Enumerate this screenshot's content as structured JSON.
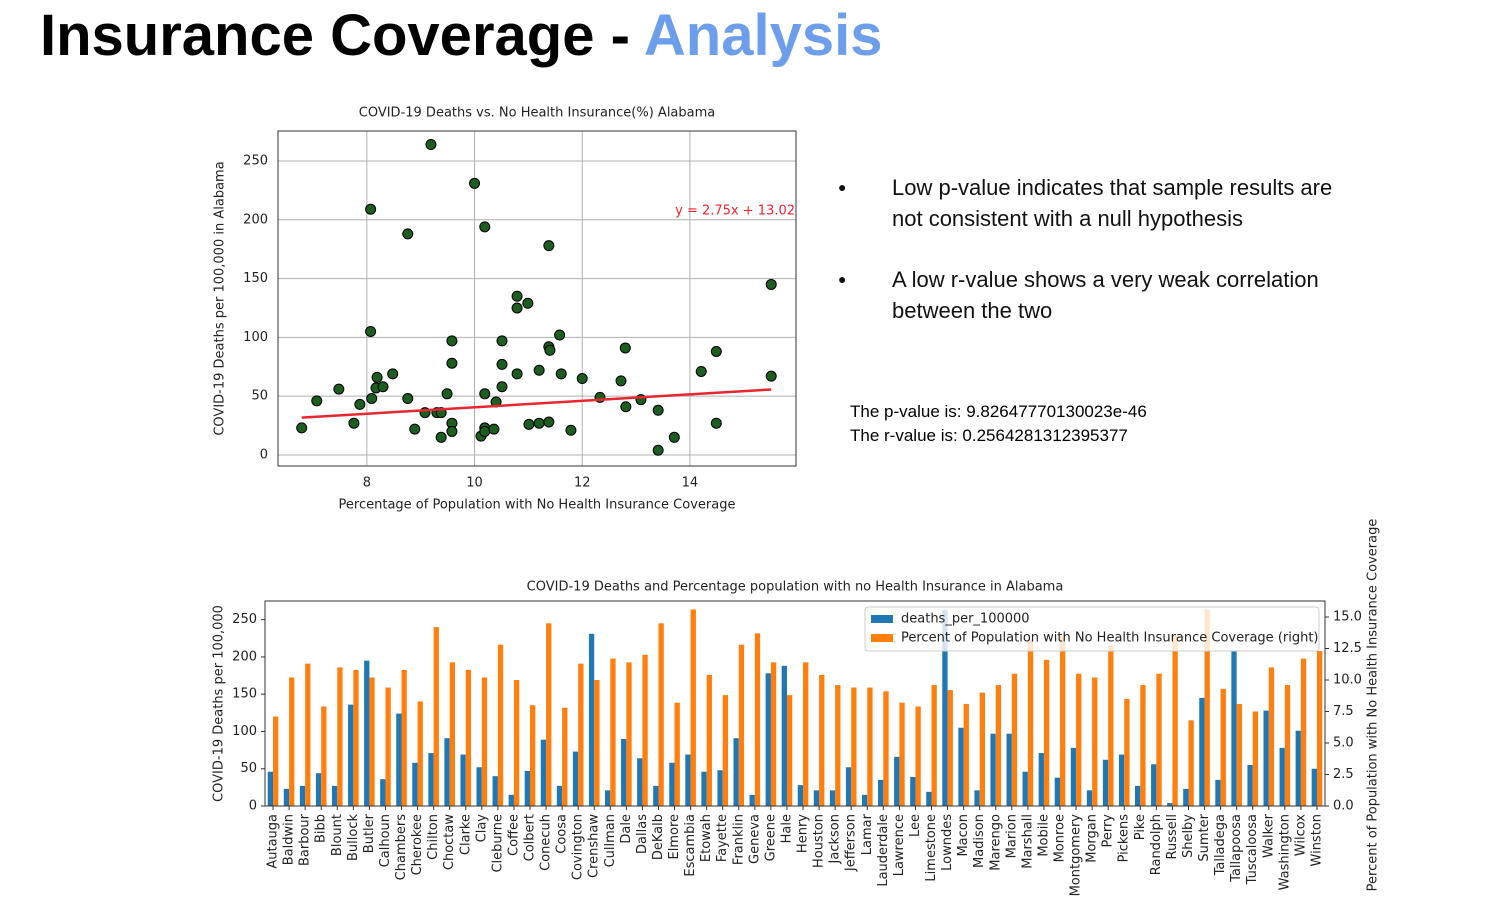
{
  "slide": {
    "title": "Insurance Coverage -",
    "title_highlight": "Analysis",
    "bullets": [
      "Low p-value indicates that sample results are not consistent with a null hypothesis",
      "A low r-value shows a very weak correlation between the two"
    ],
    "stats": [
      "The p-value is: 9.82647770130023e-46",
      "The r-value is: 0.2564281312395377"
    ]
  },
  "chart_data": [
    {
      "type": "scatter",
      "title": "COVID-19 Deaths vs. No Health Insurance(%) Alabama",
      "xlabel": "Percentage of Population with No Health Insurance Coverage",
      "ylabel": "COVID-19 Deaths per 100,000 in Alabama",
      "x": [
        6.79,
        7.07,
        7.48,
        7.76,
        7.87,
        8.07,
        8.07,
        8.09,
        8.19,
        8.17,
        8.3,
        8.48,
        8.76,
        8.76,
        8.89,
        9.08,
        9.19,
        9.3,
        9.38,
        9.38,
        9.49,
        9.58,
        9.58,
        9.58,
        9.58,
        10.0,
        10.12,
        10.19,
        10.19,
        10.19,
        10.19,
        10.36,
        10.4,
        10.51,
        10.51,
        10.51,
        10.79,
        10.79,
        10.79,
        10.99,
        11.01,
        11.2,
        11.2,
        11.38,
        11.38,
        11.38,
        11.4,
        11.58,
        11.61,
        11.79,
        12.0,
        12.33,
        12.72,
        12.8,
        12.81,
        13.09,
        13.41,
        13.41,
        13.71,
        14.21,
        14.49,
        14.49,
        15.51,
        15.51
      ],
      "y": [
        23,
        46,
        56,
        27,
        43,
        209,
        105,
        48,
        66,
        57,
        58,
        69,
        188,
        48,
        22,
        36,
        264,
        36,
        15,
        36,
        52,
        97,
        78,
        27,
        20,
        231,
        16,
        194,
        52,
        23,
        20,
        22,
        45,
        97,
        77,
        58,
        135,
        125,
        69,
        129,
        26,
        72,
        27,
        28,
        178,
        92,
        89,
        102,
        69,
        21,
        65,
        49,
        63,
        91,
        41,
        47,
        38,
        4,
        15,
        71,
        88,
        27,
        145,
        67
      ],
      "color": "#1b5e20",
      "xlim": [
        6.35,
        15.97
      ],
      "ylim": [
        -9.4,
        275.5
      ],
      "xticks": [
        8,
        10,
        12,
        14
      ],
      "yticks": [
        0,
        50,
        100,
        150,
        200,
        250
      ],
      "grid": true,
      "annotation": "y = 2.75x + 13.02",
      "annotation_color": "#e8262f",
      "trendline": {
        "slope": 2.75,
        "intercept": 13.02,
        "color": "#e8262f"
      }
    },
    {
      "type": "bar",
      "title": "COVID-19 Deaths and Percentage population with no Health Insurance in Alabama",
      "ylabel": "COVID-19 Deaths per 100,000",
      "y2label": "Percent of Population with No Health Insurance Coverage",
      "categories": [
        "Autauga",
        "Baldwin",
        "Barbour",
        "Bibb",
        "Blount",
        "Bullock",
        "Butler",
        "Calhoun",
        "Chambers",
        "Cherokee",
        "Chilton",
        "Choctaw",
        "Clarke",
        "Clay",
        "Cleburne",
        "Coffee",
        "Colbert",
        "Conecuh",
        "Coosa",
        "Covington",
        "Crenshaw",
        "Cullman",
        "Dale",
        "Dallas",
        "DeKalb",
        "Elmore",
        "Escambia",
        "Etowah",
        "Fayette",
        "Franklin",
        "Geneva",
        "Greene",
        "Hale",
        "Henry",
        "Houston",
        "Jackson",
        "Jefferson",
        "Lamar",
        "Lauderdale",
        "Lawrence",
        "Lee",
        "Limestone",
        "Lowndes",
        "Macon",
        "Madison",
        "Marengo",
        "Marion",
        "Marshall",
        "Mobile",
        "Monroe",
        "Montgomery",
        "Morgan",
        "Perry",
        "Pickens",
        "Pike",
        "Randolph",
        "Russell",
        "Shelby",
        "Sumter",
        "Talladega",
        "Tallapoosa",
        "Tuscaloosa",
        "Walker",
        "Washington",
        "Wilcox",
        "Winston"
      ],
      "series": [
        {
          "name": "deaths_per_100000",
          "color": "#1f77b4",
          "values": [
            46,
            23,
            27,
            44,
            27,
            136,
            195,
            36,
            124,
            58,
            71,
            91,
            69,
            52,
            40,
            15,
            47,
            89,
            27,
            73,
            231,
            21,
            90,
            64,
            27,
            58,
            69,
            46,
            48,
            91,
            15,
            178,
            188,
            28,
            21,
            21,
            52,
            15,
            35,
            66,
            39,
            19,
            263,
            105,
            21,
            97,
            97,
            46,
            71,
            38,
            78,
            21,
            62,
            69,
            27,
            56,
            4,
            23,
            145,
            35,
            208,
            55,
            128,
            78,
            101,
            50
          ]
        },
        {
          "name": "Percent of Population with No Health Insurance Coverage (right)",
          "color": "#ff7f0e",
          "axis": "y2",
          "values": [
            7.1,
            10.2,
            11.3,
            7.9,
            11.0,
            10.8,
            10.2,
            9.4,
            10.8,
            8.3,
            14.2,
            11.4,
            10.8,
            10.2,
            12.8,
            10.0,
            8.0,
            14.5,
            7.8,
            11.3,
            10.0,
            11.7,
            11.4,
            12.0,
            14.5,
            8.2,
            15.6,
            10.4,
            8.8,
            12.8,
            13.7,
            11.4,
            8.8,
            11.4,
            10.4,
            9.6,
            9.4,
            9.4,
            9.1,
            8.2,
            7.9,
            9.6,
            9.2,
            8.1,
            9.0,
            9.6,
            10.5,
            13.2,
            11.6,
            13.5,
            10.5,
            10.2,
            12.7,
            8.5,
            9.6,
            10.5,
            13.5,
            6.8,
            15.6,
            9.3,
            8.1,
            7.5,
            11.0,
            9.6,
            11.7,
            12.3
          ]
        }
      ],
      "ylim": [
        0,
        275
      ],
      "yticks": [
        0,
        50,
        100,
        150,
        200,
        250
      ],
      "y2lim": [
        0,
        16.27
      ],
      "y2ticks": [
        {
          "value": 0,
          "label": "0.0"
        },
        {
          "value": 2.5,
          "label": "2.5"
        },
        {
          "value": 5,
          "label": "5.0"
        },
        {
          "value": 7.5,
          "label": "7.5"
        },
        {
          "value": 10,
          "label": "10.0"
        },
        {
          "value": 12.5,
          "label": "12.5"
        },
        {
          "value": 15,
          "label": "15.0"
        }
      ],
      "legend": "upper right"
    }
  ]
}
